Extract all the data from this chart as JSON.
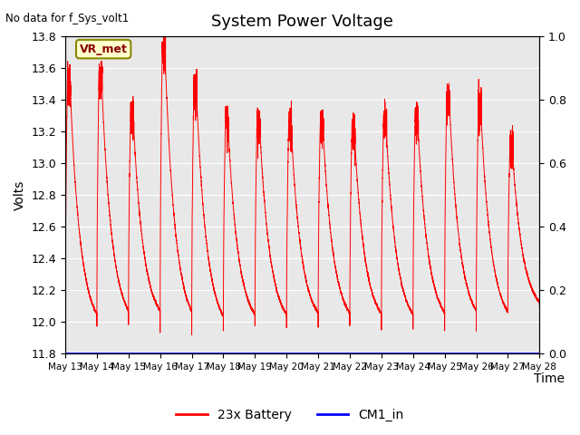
{
  "title": "System Power Voltage",
  "top_left_text": "No data for f_Sys_volt1",
  "annotation_label": "VR_met",
  "ylabel_left": "Volts",
  "xlabel": "Time",
  "ylim_left": [
    11.8,
    13.8
  ],
  "ylim_right": [
    0.0,
    1.0
  ],
  "yticks_left": [
    11.8,
    12.0,
    12.2,
    12.4,
    12.6,
    12.8,
    13.0,
    13.2,
    13.4,
    13.6,
    13.8
  ],
  "yticks_right": [
    0.0,
    0.2,
    0.4,
    0.6,
    0.8,
    1.0
  ],
  "xtick_labels": [
    "May 13",
    "May 14",
    "May 15",
    "May 16",
    "May 17",
    "May 18",
    "May 19",
    "May 20",
    "May 21",
    "May 22",
    "May 23",
    "May 24",
    "May 25",
    "May 26",
    "May 27",
    "May 28"
  ],
  "battery_color": "red",
  "cm1_color": "blue",
  "background_color": "#e8e8e8",
  "grid_color": "white",
  "peaks": [
    12.05,
    13.55,
    13.58,
    13.35,
    13.75,
    13.5,
    13.3,
    13.3,
    13.28,
    13.3,
    13.25,
    13.3,
    13.32,
    13.45,
    13.38,
    13.15
  ],
  "mins": [
    11.93,
    11.95,
    11.97,
    11.93,
    11.92,
    11.95,
    11.95,
    11.96,
    11.96,
    11.96,
    11.95,
    11.96,
    11.96,
    11.96,
    12.05,
    12.1
  ]
}
